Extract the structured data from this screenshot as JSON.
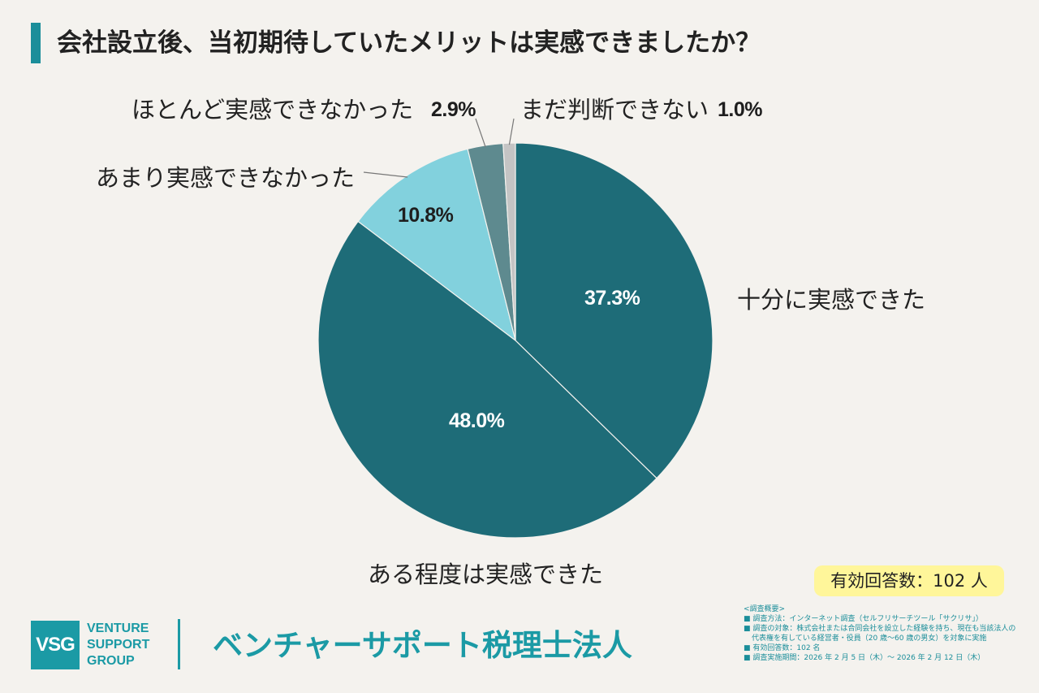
{
  "header": {
    "title": "会社設立後、当初期待していたメリットは実感できましたか？"
  },
  "chart_data": {
    "type": "pie",
    "title": "会社設立後、当初期待していたメリットは実感できましたか？",
    "slices": [
      {
        "label": "十分に実感できた",
        "value": 37.3,
        "value_label": "37.3%",
        "color": "#1e6c78"
      },
      {
        "label": "ある程度は実感できた",
        "value": 48.0,
        "value_label": "48.0%",
        "color": "#1e6c78"
      },
      {
        "label": "あまり実感できなかった",
        "value": 10.8,
        "value_label": "10.8%",
        "color": "#82d1dd"
      },
      {
        "label": "ほとんど実感できなかった",
        "value": 2.9,
        "value_label": "2.9%",
        "color": "#5e8a8f"
      },
      {
        "label": "まだ判断できない",
        "value": 1.0,
        "value_label": "1.0%",
        "color": "#c4c4c4"
      }
    ],
    "start_angle_deg": 0,
    "direction": "clockwise",
    "legend": "none"
  },
  "respondents": {
    "text": "有効回答数：102 人"
  },
  "footer": {
    "logo_mark": "VSG",
    "logo_words": [
      "VENTURE",
      "SUPPORT",
      "GROUP"
    ],
    "company_name": "ベンチャーサポート税理士法人"
  },
  "survey_notes": {
    "heading": "<調査概要>",
    "method": "■ 調査方法：インターネット調査（セルフリサーチツール「サクリサ」）",
    "target_line1": "■ 調査の対象：株式会社または合同会社を設立した経験を持ち、現在も当該法人の",
    "target_line2": "代表権を有している経営者・役員（20 歳〜60 歳の男女）を対象に実施",
    "responses": "■ 有効回答数：102 名",
    "period": "■ 調査実施期間：2026 年 2 月 5 日（木）〜 2026 年 2 月 12 日（木）"
  }
}
